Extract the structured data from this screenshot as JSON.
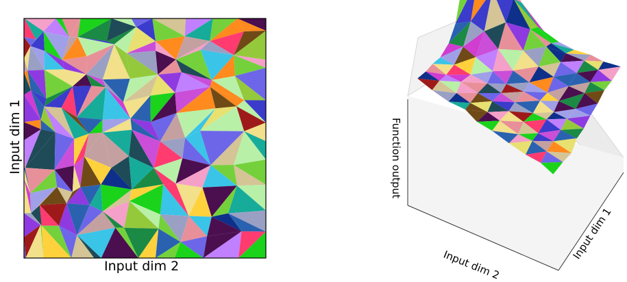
{
  "left_panel": {
    "xlabel": "Input dim 2",
    "ylabel": "Input dim 1"
  },
  "right_panel": {
    "zlabel": "Function output",
    "xlabel": "Input dim 2",
    "ylabel": "Input dim 1"
  },
  "palette": [
    "#e8909a",
    "#2a62b0",
    "#1bd31b",
    "#8f3ae0",
    "#d03dd0",
    "#94c93c",
    "#f2e08a",
    "#1a8a44",
    "#ff3b70",
    "#3ac4e8",
    "#a0a0e8",
    "#6f4a16",
    "#c080ff",
    "#ffd23d",
    "#17ab9a",
    "#0e2f8a",
    "#f4a0c8",
    "#74d13b",
    "#4b0e4f",
    "#d4c496",
    "#9aa0c4",
    "#ff8a1e",
    "#1e4b57",
    "#b8f0a8",
    "#ca4ed8",
    "#6d66e8",
    "#c4a0a0",
    "#e8e070",
    "#3b3bcc",
    "#9e1a1a"
  ]
}
